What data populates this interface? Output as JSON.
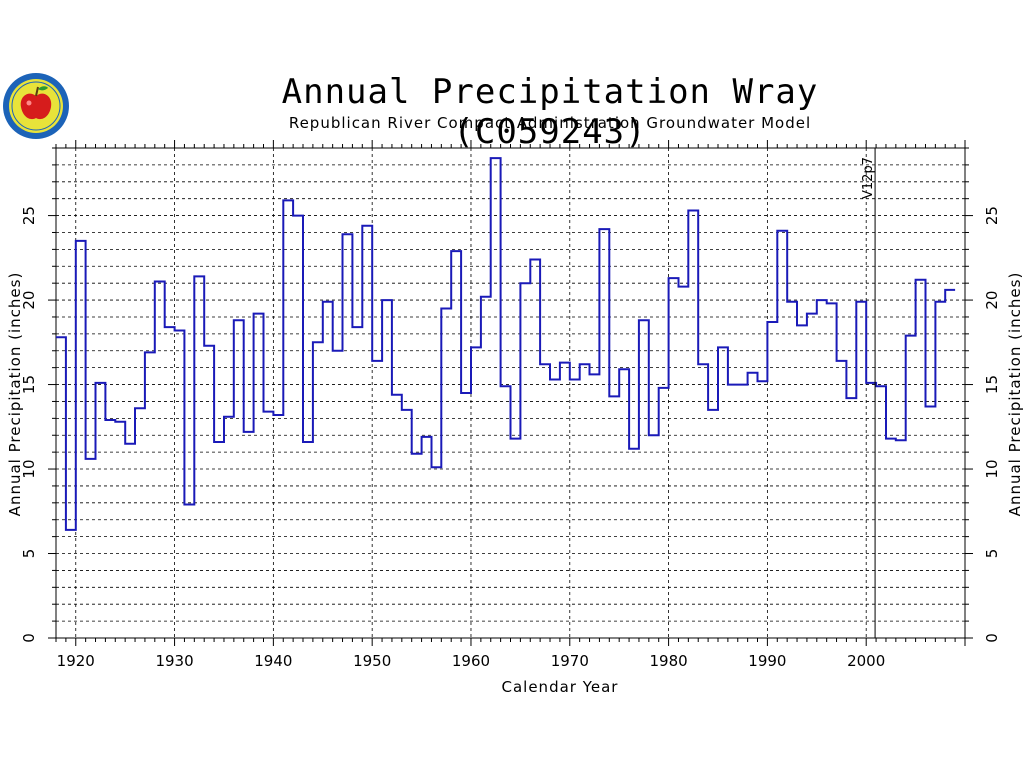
{
  "title": "Annual Precipitation Wray (C059243)",
  "subtitle": "Republican River Compact Administration Groundwater Model",
  "chart_data": {
    "type": "line",
    "title": "Annual Precipitation Wray (C059243)",
    "subtitle": "Republican River Compact Administration Groundwater Model",
    "xlabel": "Calendar Year",
    "ylabel": "Annual Precipitation (inches)",
    "xlim": [
      1918,
      2009
    ],
    "ylim": [
      0,
      29
    ],
    "xticks": [
      1920,
      1930,
      1940,
      1950,
      1960,
      1970,
      1980,
      1990,
      2000
    ],
    "yticks": [
      0,
      5,
      10,
      15,
      20,
      25
    ],
    "grid": true,
    "step": true,
    "line_color": "#1a1ab8",
    "annotation": {
      "text": "V12p7",
      "x": 2001
    },
    "x": [
      1918,
      1919,
      1920,
      1921,
      1922,
      1923,
      1924,
      1925,
      1926,
      1927,
      1928,
      1929,
      1930,
      1931,
      1932,
      1933,
      1934,
      1935,
      1936,
      1937,
      1938,
      1939,
      1940,
      1941,
      1942,
      1943,
      1944,
      1945,
      1946,
      1947,
      1948,
      1949,
      1950,
      1951,
      1952,
      1953,
      1954,
      1955,
      1956,
      1957,
      1958,
      1959,
      1960,
      1961,
      1962,
      1963,
      1964,
      1965,
      1966,
      1967,
      1968,
      1969,
      1970,
      1971,
      1972,
      1973,
      1974,
      1975,
      1976,
      1977,
      1978,
      1979,
      1980,
      1981,
      1982,
      1983,
      1984,
      1985,
      1986,
      1987,
      1988,
      1989,
      1990,
      1991,
      1992,
      1993,
      1994,
      1995,
      1996,
      1997,
      1998,
      1999,
      2000,
      2001,
      2002,
      2003,
      2004,
      2005,
      2006,
      2007,
      2008
    ],
    "y": [
      17.8,
      6.4,
      23.5,
      10.6,
      15.1,
      12.9,
      12.8,
      11.5,
      13.6,
      16.9,
      21.1,
      18.4,
      18.2,
      7.9,
      21.4,
      17.3,
      11.6,
      13.1,
      18.8,
      12.2,
      19.2,
      13.4,
      13.2,
      25.9,
      25.0,
      11.6,
      17.5,
      19.9,
      17.0,
      23.9,
      18.4,
      24.4,
      16.4,
      20.0,
      14.4,
      13.5,
      10.9,
      11.9,
      10.1,
      19.5,
      22.9,
      14.5,
      17.2,
      20.2,
      28.4,
      14.9,
      11.8,
      21.0,
      22.4,
      16.2,
      15.3,
      16.3,
      15.3,
      16.2,
      15.6,
      24.2,
      14.3,
      15.9,
      11.2,
      18.8,
      12.0,
      14.8,
      21.3,
      20.8,
      25.3,
      16.2,
      13.5,
      17.2,
      15.0,
      15.0,
      15.7,
      15.2,
      18.7,
      24.1,
      19.9,
      18.5,
      19.2,
      20.0,
      19.8,
      16.4,
      14.2,
      19.9,
      15.1,
      14.9,
      11.8,
      11.7,
      17.9,
      21.2,
      13.7,
      19.9,
      20.6
    ]
  }
}
